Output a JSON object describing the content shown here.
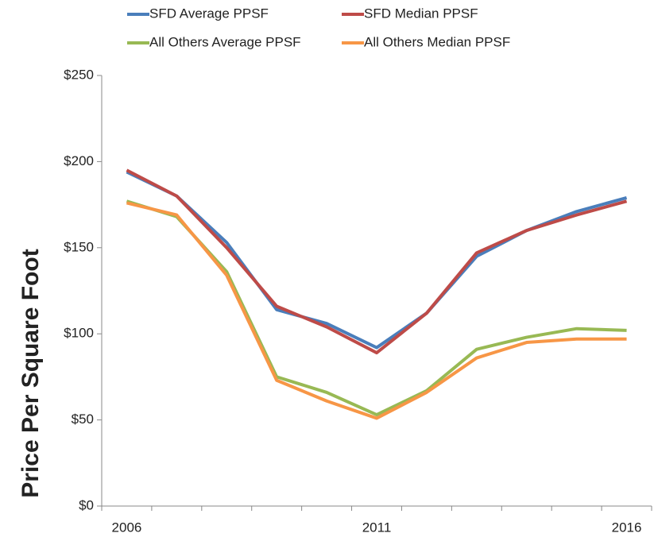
{
  "chart_data": {
    "type": "line",
    "y_label": "Price Per Square Foot",
    "categories": [
      "2006",
      null,
      null,
      null,
      null,
      "2011",
      null,
      null,
      null,
      null,
      "2016"
    ],
    "series": [
      {
        "name": "SFD Average PPSF",
        "color": "#4a7ebb",
        "values": [
          194,
          180,
          153,
          114,
          106,
          92,
          112,
          145,
          160,
          171,
          179
        ]
      },
      {
        "name": "SFD Median PPSF",
        "color": "#be4b48",
        "values": [
          195,
          180,
          150,
          116,
          104,
          89,
          112,
          147,
          160,
          169,
          177
        ]
      },
      {
        "name": "All Others Average PPSF",
        "color": "#98b954",
        "values": [
          177,
          168,
          136,
          75,
          66,
          53,
          67,
          91,
          98,
          103,
          102
        ]
      },
      {
        "name": "All Others Median PPSF",
        "color": "#f79646",
        "values": [
          176,
          169,
          134,
          73,
          61,
          51,
          66,
          86,
          95,
          97,
          97
        ]
      }
    ],
    "ylim": [
      0,
      250
    ],
    "yticks": [
      {
        "value": 0,
        "label": "$0"
      },
      {
        "value": 50,
        "label": "$50"
      },
      {
        "value": 100,
        "label": "$100"
      },
      {
        "value": 150,
        "label": "$150"
      },
      {
        "value": 200,
        "label": "$200"
      },
      {
        "value": 250,
        "label": "$250"
      }
    ],
    "grid": false
  }
}
